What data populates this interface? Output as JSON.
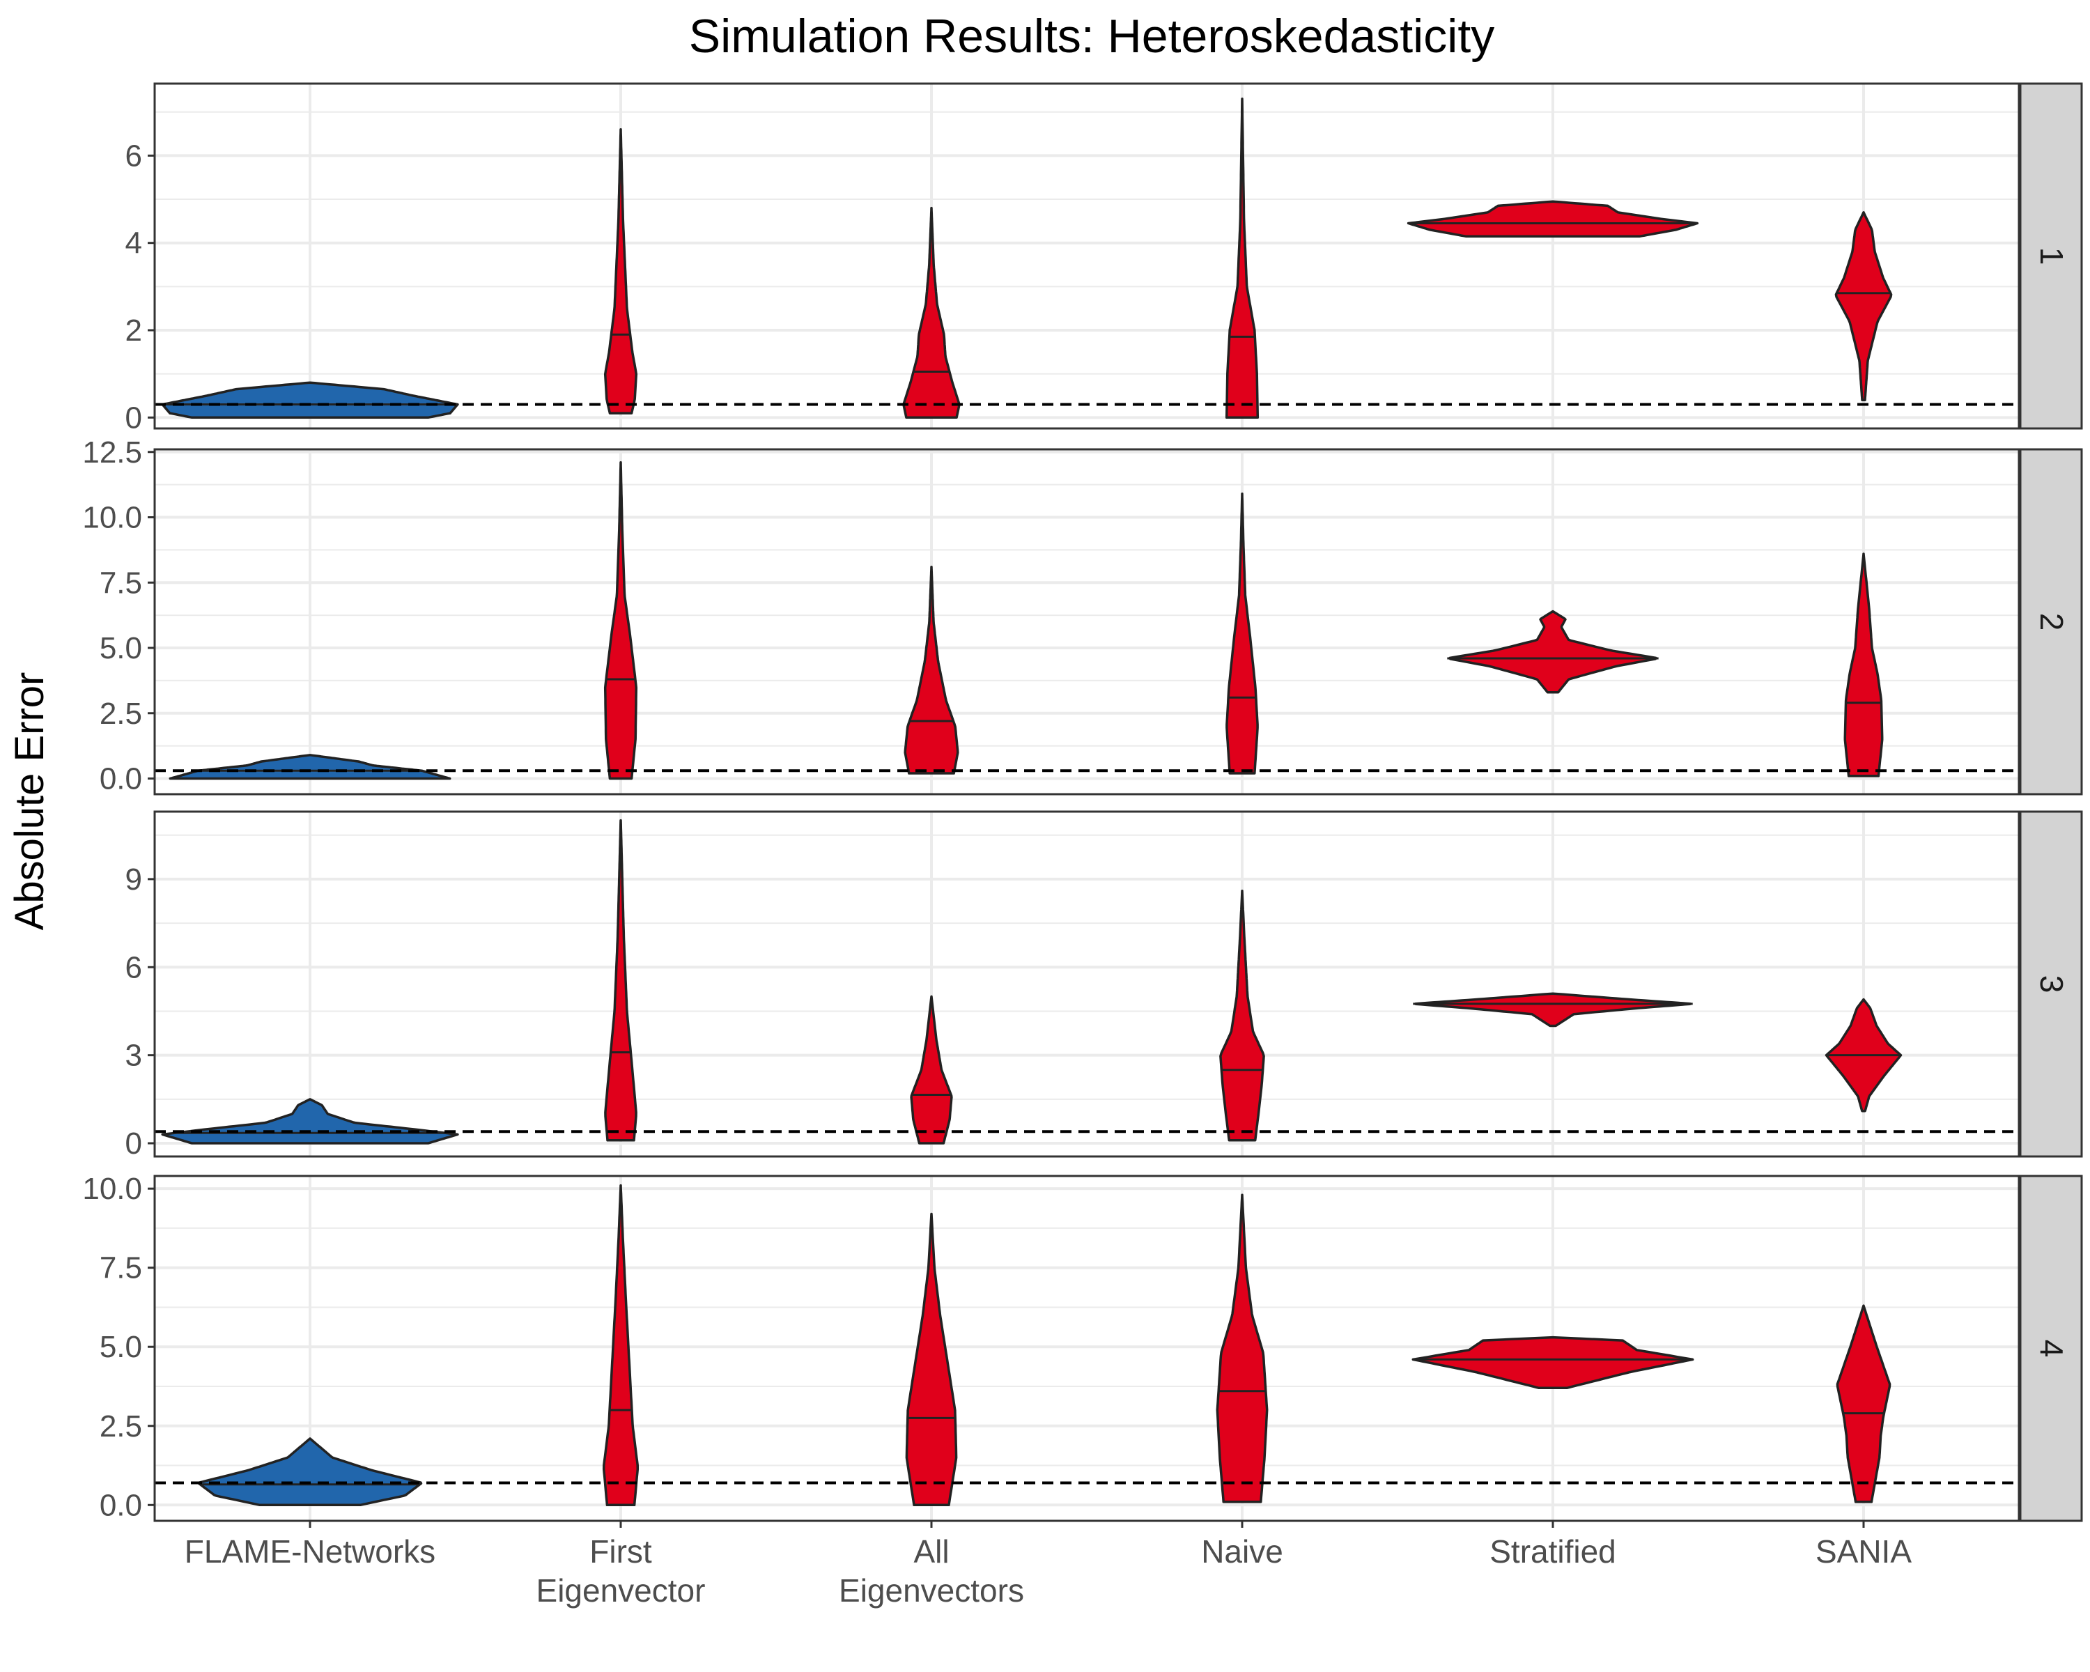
{
  "chart_data": {
    "type": "violin",
    "title": "Simulation Results: Heteroskedasticity",
    "ylabel": "Absolute Error",
    "xlabel": "",
    "categories": [
      [
        "FLAME-Networks"
      ],
      [
        "First",
        "Eigenvector"
      ],
      [
        "All",
        "Eigenvectors"
      ],
      [
        "Naive"
      ],
      [
        "Stratified"
      ],
      [
        "SANIA"
      ]
    ],
    "colors": {
      "FLAME-Networks": "#2166AC",
      "others": "#E0001B",
      "strip_fill": "#D3D3D3",
      "grid": "#EBEBEB"
    },
    "grid": true,
    "panels": [
      {
        "strip_label": "1",
        "ylim": [
          -0.25,
          7.65
        ],
        "yticks": [
          0,
          2,
          4,
          6
        ],
        "ytick_labels": [
          "0",
          "2",
          "4",
          "6"
        ],
        "reference_line": 0.3,
        "violins": [
          {
            "min": 0.0,
            "max": 0.8,
            "median": 0.3,
            "width": 0.95,
            "profile": [
              [
                0,
                0.8
              ],
              [
                0.1,
                0.95
              ],
              [
                0.3,
                1.0
              ],
              [
                0.5,
                0.7
              ],
              [
                0.65,
                0.5
              ],
              [
                0.8,
                0.0
              ]
            ]
          },
          {
            "min": 0.1,
            "max": 6.6,
            "median": 1.9,
            "width": 0.1,
            "profile": [
              [
                0.1,
                0.7
              ],
              [
                0.4,
                0.9
              ],
              [
                1.0,
                1.0
              ],
              [
                1.5,
                0.75
              ],
              [
                2.5,
                0.4
              ],
              [
                4.5,
                0.15
              ],
              [
                6.6,
                0.0
              ]
            ]
          },
          {
            "min": 0.0,
            "max": 4.8,
            "median": 1.05,
            "width": 0.18,
            "profile": [
              [
                0,
                0.9
              ],
              [
                0.3,
                1.0
              ],
              [
                0.8,
                0.75
              ],
              [
                1.4,
                0.5
              ],
              [
                1.9,
                0.45
              ],
              [
                2.6,
                0.2
              ],
              [
                3.5,
                0.08
              ],
              [
                4.8,
                0.0
              ]
            ]
          },
          {
            "min": 0.0,
            "max": 7.3,
            "median": 1.85,
            "width": 0.1,
            "profile": [
              [
                0,
                1.0
              ],
              [
                1.0,
                0.95
              ],
              [
                2.0,
                0.8
              ],
              [
                3.0,
                0.3
              ],
              [
                4.5,
                0.12
              ],
              [
                7.3,
                0.0
              ]
            ]
          },
          {
            "min": 4.15,
            "max": 4.95,
            "median": 4.45,
            "width": 0.93,
            "profile": [
              [
                4.15,
                0.6
              ],
              [
                4.3,
                0.85
              ],
              [
                4.45,
                1.0
              ],
              [
                4.55,
                0.75
              ],
              [
                4.7,
                0.45
              ],
              [
                4.85,
                0.38
              ],
              [
                4.95,
                0.0
              ]
            ]
          },
          {
            "min": 0.4,
            "max": 4.7,
            "median": 2.85,
            "width": 0.18,
            "profile": [
              [
                0.4,
                0.05
              ],
              [
                1.3,
                0.15
              ],
              [
                2.2,
                0.5
              ],
              [
                2.8,
                1.0
              ],
              [
                3.2,
                0.7
              ],
              [
                3.8,
                0.4
              ],
              [
                4.3,
                0.3
              ],
              [
                4.7,
                0.0
              ]
            ]
          }
        ]
      },
      {
        "strip_label": "2",
        "ylim": [
          -0.6,
          12.6
        ],
        "yticks": [
          0,
          2.5,
          5,
          7.5,
          10,
          12.5
        ],
        "ytick_labels": [
          "0.0",
          "2.5",
          "5.0",
          "7.5",
          "10.0",
          "12.5"
        ],
        "reference_line": 0.3,
        "violins": [
          {
            "min": 0.0,
            "max": 0.9,
            "median": 0.3,
            "width": 0.9,
            "profile": [
              [
                0,
                1.0
              ],
              [
                0.15,
                0.9
              ],
              [
                0.3,
                0.8
              ],
              [
                0.5,
                0.45
              ],
              [
                0.65,
                0.35
              ],
              [
                0.9,
                0.0
              ]
            ]
          },
          {
            "min": 0.0,
            "max": 12.1,
            "median": 3.8,
            "width": 0.1,
            "profile": [
              [
                0,
                0.7
              ],
              [
                1.5,
                0.95
              ],
              [
                3.5,
                1.0
              ],
              [
                5.5,
                0.6
              ],
              [
                7.0,
                0.25
              ],
              [
                9.5,
                0.1
              ],
              [
                12.1,
                0.0
              ]
            ]
          },
          {
            "min": 0.2,
            "max": 8.1,
            "median": 2.2,
            "width": 0.17,
            "profile": [
              [
                0.2,
                0.85
              ],
              [
                1.0,
                1.0
              ],
              [
                2.0,
                0.9
              ],
              [
                3.0,
                0.55
              ],
              [
                4.5,
                0.25
              ],
              [
                6.0,
                0.08
              ],
              [
                8.1,
                0.0
              ]
            ]
          },
          {
            "min": 0.2,
            "max": 10.9,
            "median": 3.1,
            "width": 0.1,
            "profile": [
              [
                0.2,
                0.8
              ],
              [
                2.0,
                1.0
              ],
              [
                3.5,
                0.85
              ],
              [
                5.5,
                0.5
              ],
              [
                7.0,
                0.2
              ],
              [
                9.0,
                0.08
              ],
              [
                10.9,
                0.0
              ]
            ]
          },
          {
            "min": 3.3,
            "max": 6.4,
            "median": 4.6,
            "width": 0.68,
            "profile": [
              [
                3.3,
                0.05
              ],
              [
                3.8,
                0.15
              ],
              [
                4.3,
                0.6
              ],
              [
                4.6,
                1.0
              ],
              [
                4.9,
                0.55
              ],
              [
                5.3,
                0.15
              ],
              [
                5.8,
                0.08
              ],
              [
                6.1,
                0.12
              ],
              [
                6.4,
                0.0
              ]
            ]
          },
          {
            "min": 0.1,
            "max": 8.6,
            "median": 2.9,
            "width": 0.12,
            "profile": [
              [
                0.1,
                0.8
              ],
              [
                1.5,
                1.0
              ],
              [
                3.0,
                0.95
              ],
              [
                4.0,
                0.75
              ],
              [
                5.0,
                0.45
              ],
              [
                6.5,
                0.3
              ],
              [
                8.6,
                0.0
              ]
            ]
          }
        ]
      },
      {
        "strip_label": "3",
        "ylim": [
          -0.45,
          11.3
        ],
        "yticks": [
          0,
          3,
          6,
          9
        ],
        "ytick_labels": [
          "0",
          "3",
          "6",
          "9"
        ],
        "reference_line": 0.4,
        "violins": [
          {
            "min": 0.0,
            "max": 1.5,
            "median": 0.35,
            "width": 0.95,
            "profile": [
              [
                0,
                0.8
              ],
              [
                0.3,
                1.0
              ],
              [
                0.45,
                0.75
              ],
              [
                0.7,
                0.3
              ],
              [
                1.0,
                0.12
              ],
              [
                1.3,
                0.08
              ],
              [
                1.5,
                0.0
              ]
            ]
          },
          {
            "min": 0.1,
            "max": 11.0,
            "median": 3.1,
            "width": 0.1,
            "profile": [
              [
                0.1,
                0.85
              ],
              [
                1.0,
                1.0
              ],
              [
                2.5,
                0.75
              ],
              [
                4.5,
                0.4
              ],
              [
                7.0,
                0.2
              ],
              [
                9.0,
                0.1
              ],
              [
                11.0,
                0.0
              ]
            ]
          },
          {
            "min": 0.0,
            "max": 5.0,
            "median": 1.65,
            "width": 0.13,
            "profile": [
              [
                0,
                0.6
              ],
              [
                0.8,
                0.9
              ],
              [
                1.6,
                1.0
              ],
              [
                2.5,
                0.5
              ],
              [
                3.5,
                0.25
              ],
              [
                5.0,
                0.0
              ]
            ]
          },
          {
            "min": 0.1,
            "max": 8.6,
            "median": 2.5,
            "width": 0.14,
            "profile": [
              [
                0.1,
                0.6
              ],
              [
                1.0,
                0.75
              ],
              [
                2.0,
                0.9
              ],
              [
                3.0,
                1.0
              ],
              [
                3.8,
                0.5
              ],
              [
                5.0,
                0.25
              ],
              [
                7.0,
                0.1
              ],
              [
                8.6,
                0.0
              ]
            ]
          },
          {
            "min": 4.0,
            "max": 5.1,
            "median": 4.75,
            "width": 0.9,
            "profile": [
              [
                4.0,
                0.02
              ],
              [
                4.4,
                0.15
              ],
              [
                4.6,
                0.6
              ],
              [
                4.75,
                1.0
              ],
              [
                4.9,
                0.55
              ],
              [
                5.1,
                0.0
              ]
            ]
          },
          {
            "min": 1.1,
            "max": 4.9,
            "median": 3.0,
            "width": 0.24,
            "profile": [
              [
                1.1,
                0.04
              ],
              [
                1.6,
                0.15
              ],
              [
                2.3,
                0.55
              ],
              [
                3.0,
                1.0
              ],
              [
                3.4,
                0.65
              ],
              [
                4.0,
                0.35
              ],
              [
                4.6,
                0.18
              ],
              [
                4.9,
                0.0
              ]
            ]
          }
        ]
      },
      {
        "strip_label": "4",
        "ylim": [
          -0.5,
          10.4
        ],
        "yticks": [
          0,
          2.5,
          5,
          7.5,
          10
        ],
        "ytick_labels": [
          "0.0",
          "2.5",
          "5.0",
          "7.5",
          "10.0"
        ],
        "reference_line": 0.7,
        "violins": [
          {
            "min": 0.0,
            "max": 2.1,
            "median": 0.65,
            "width": 0.72,
            "profile": [
              [
                0,
                0.45
              ],
              [
                0.3,
                0.85
              ],
              [
                0.7,
                1.0
              ],
              [
                1.1,
                0.55
              ],
              [
                1.5,
                0.2
              ],
              [
                1.8,
                0.1
              ],
              [
                2.1,
                0.0
              ]
            ]
          },
          {
            "min": 0.0,
            "max": 10.1,
            "median": 3.0,
            "width": 0.11,
            "profile": [
              [
                0,
                0.8
              ],
              [
                1.2,
                1.0
              ],
              [
                2.5,
                0.7
              ],
              [
                4.0,
                0.55
              ],
              [
                6.5,
                0.3
              ],
              [
                8.5,
                0.12
              ],
              [
                10.1,
                0.0
              ]
            ]
          },
          {
            "min": 0.0,
            "max": 9.2,
            "median": 2.75,
            "width": 0.16,
            "profile": [
              [
                0,
                0.7
              ],
              [
                1.5,
                1.0
              ],
              [
                3.0,
                0.95
              ],
              [
                4.5,
                0.65
              ],
              [
                6.0,
                0.35
              ],
              [
                7.5,
                0.12
              ],
              [
                9.2,
                0.0
              ]
            ]
          },
          {
            "min": 0.1,
            "max": 9.8,
            "median": 3.6,
            "width": 0.16,
            "profile": [
              [
                0.1,
                0.75
              ],
              [
                1.5,
                0.9
              ],
              [
                3.0,
                1.0
              ],
              [
                4.8,
                0.85
              ],
              [
                6.0,
                0.4
              ],
              [
                7.5,
                0.15
              ],
              [
                9.8,
                0.0
              ]
            ]
          },
          {
            "min": 3.7,
            "max": 5.3,
            "median": 4.6,
            "width": 0.9,
            "profile": [
              [
                3.7,
                0.1
              ],
              [
                4.2,
                0.55
              ],
              [
                4.6,
                1.0
              ],
              [
                4.9,
                0.6
              ],
              [
                5.2,
                0.5
              ],
              [
                5.3,
                0.0
              ]
            ]
          },
          {
            "min": 0.1,
            "max": 6.3,
            "median": 2.9,
            "width": 0.17,
            "profile": [
              [
                0.1,
                0.3
              ],
              [
                1.5,
                0.6
              ],
              [
                2.2,
                0.65
              ],
              [
                2.8,
                0.75
              ],
              [
                3.8,
                1.0
              ],
              [
                5.0,
                0.5
              ],
              [
                6.3,
                0.0
              ]
            ]
          }
        ]
      }
    ]
  }
}
